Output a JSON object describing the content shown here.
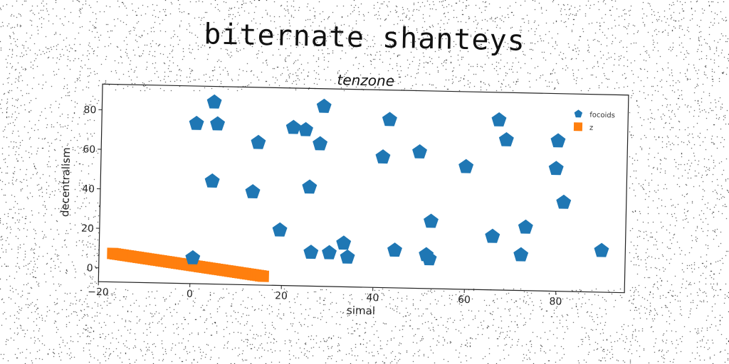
{
  "suptitle": "biternate shanteys",
  "colors": {
    "series1": "#1f77b4",
    "series2": "#ff7f0e"
  },
  "chart_data": {
    "type": "scatter",
    "title": "tenzone",
    "xlabel": "simal",
    "ylabel": "decentralism",
    "xlim": [
      -20,
      95
    ],
    "ylim": [
      -7,
      93
    ],
    "xticks": [
      -20,
      0,
      20,
      40,
      60,
      80
    ],
    "yticks": [
      0,
      20,
      40,
      60,
      80
    ],
    "grid": false,
    "legend_position": "top-right",
    "series": [
      {
        "name": "focoids",
        "marker": "pentagon",
        "color": "#1f77b4",
        "points": [
          [
            0.7,
            74
          ],
          [
            4.5,
            85
          ],
          [
            5.3,
            74
          ],
          [
            4.4,
            45
          ],
          [
            0.5,
            6
          ],
          [
            14.3,
            65
          ],
          [
            13.3,
            40
          ],
          [
            19.4,
            21
          ],
          [
            21.9,
            73
          ],
          [
            24.6,
            72
          ],
          [
            27.8,
            65
          ],
          [
            28.5,
            84
          ],
          [
            25.7,
            43
          ],
          [
            26.3,
            10
          ],
          [
            30.3,
            10
          ],
          [
            33.4,
            15
          ],
          [
            34.3,
            8
          ],
          [
            42.9,
            78
          ],
          [
            41.6,
            59
          ],
          [
            44.6,
            12
          ],
          [
            49.6,
            62
          ],
          [
            52.4,
            27
          ],
          [
            51.5,
            10
          ],
          [
            52.2,
            8
          ],
          [
            59.8,
            55
          ],
          [
            66.8,
            79
          ],
          [
            68.5,
            69
          ],
          [
            65.9,
            20
          ],
          [
            73.1,
            25
          ],
          [
            72.2,
            11
          ],
          [
            79.8,
            69
          ],
          [
            79.5,
            55
          ],
          [
            81.3,
            38
          ],
          [
            89.8,
            14
          ]
        ]
      },
      {
        "name": "z",
        "marker": "square",
        "color": "#ff7f0e",
        "x": [
          -17,
          16
        ],
        "slope": -0.3,
        "intercept": 2.3
      }
    ]
  }
}
